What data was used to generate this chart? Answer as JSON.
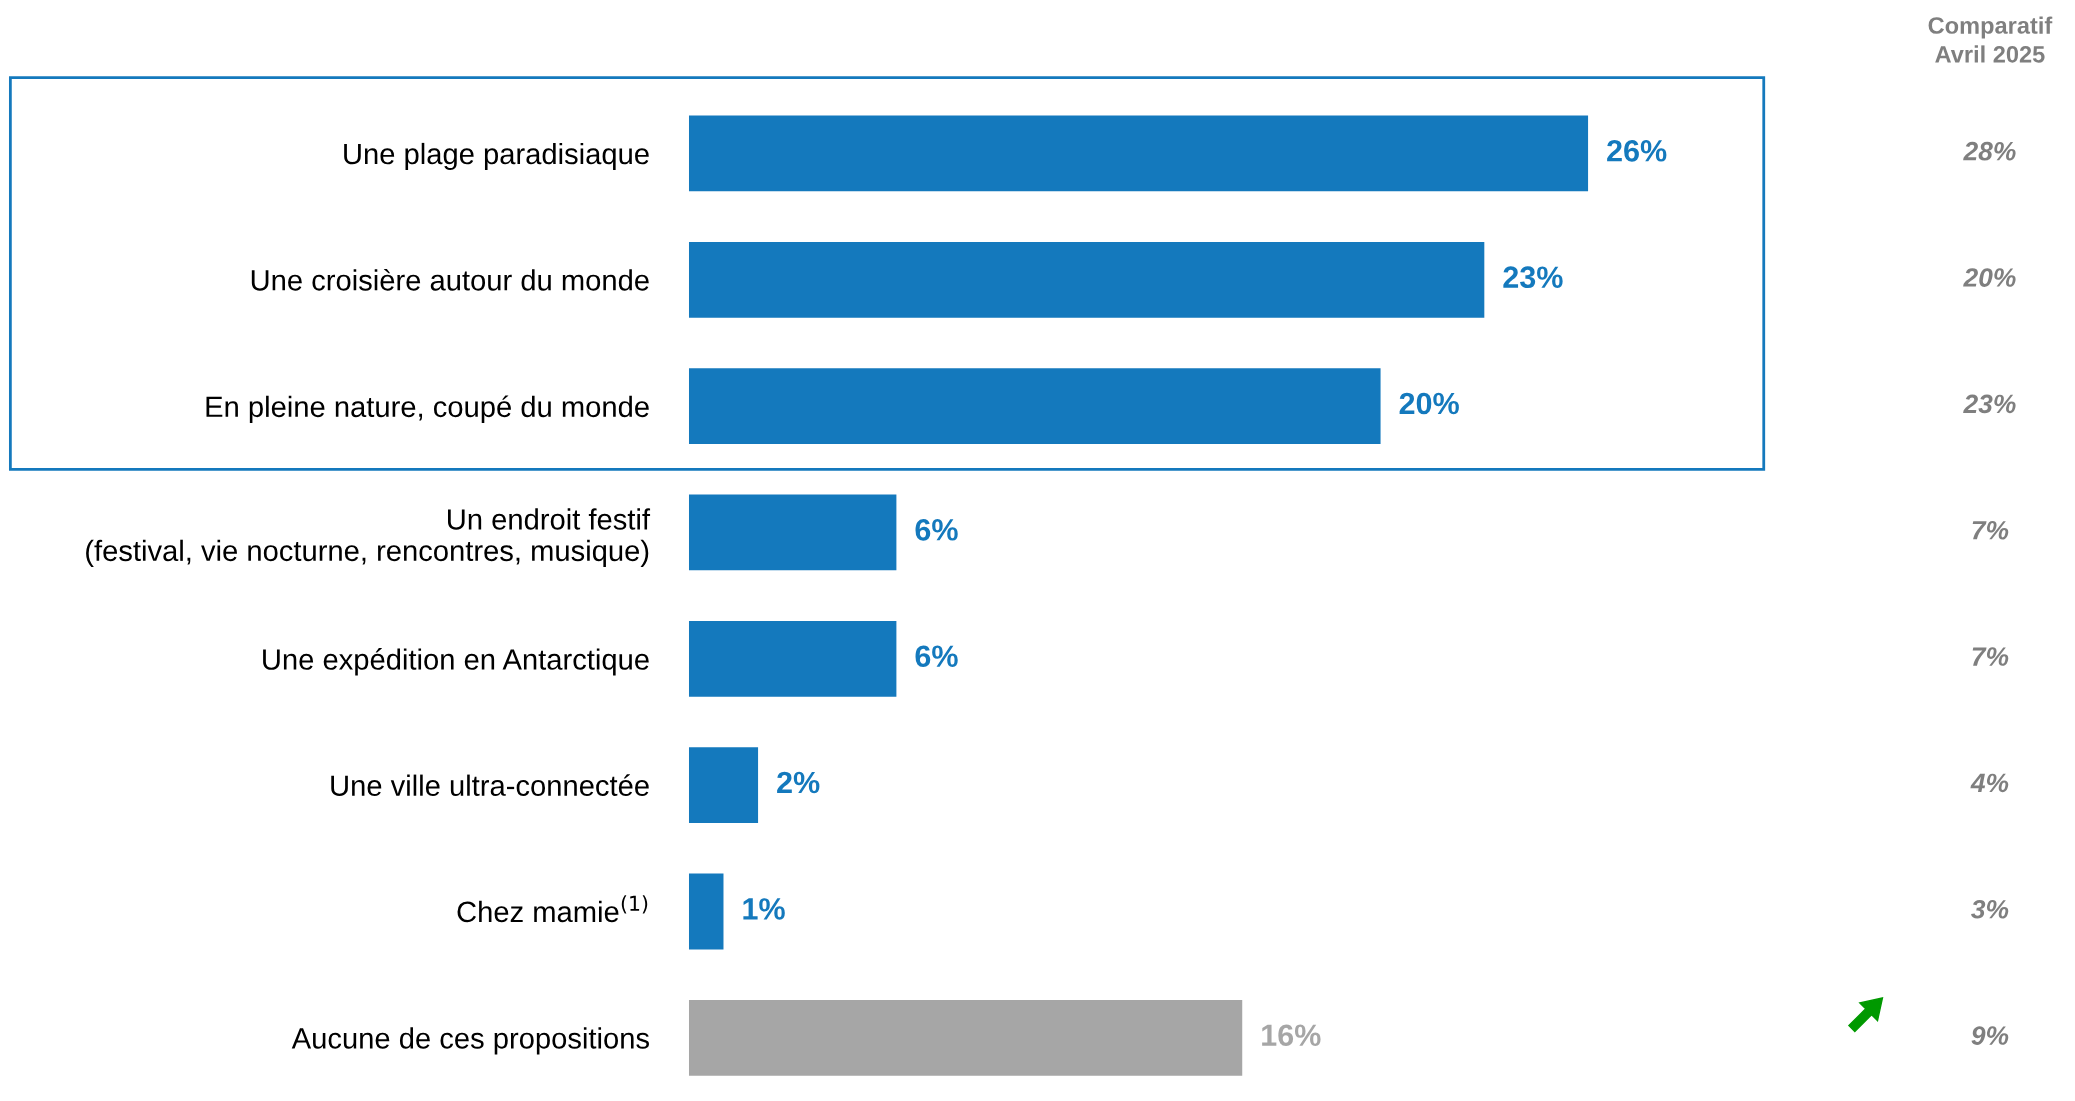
{
  "chart_data": {
    "type": "bar",
    "orientation": "horizontal",
    "categories": [
      "Une plage paradisiaque",
      "Une croisière autour du monde",
      "En pleine nature, coupé du monde",
      "Un endroit festif\n(festival, vie nocturne, rencontres, musique)",
      "Une expédition en Antarctique",
      "Une ville ultra-connectée",
      "Chez mamie$^{(1)}$",
      "Aucune de ces propositions"
    ],
    "values": [
      26,
      23,
      20,
      6,
      6,
      2,
      1,
      16
    ],
    "value_labels": [
      "26%",
      "23%",
      "20%",
      "6%",
      "6%",
      "2%",
      "1%",
      "16%"
    ],
    "colors": [
      "#1479bd",
      "#1479bd",
      "#1479bd",
      "#1479bd",
      "#1479bd",
      "#1479bd",
      "#1479bd",
      "#a6a6a6"
    ],
    "annotations": [
      "Comparatif\nAvril 2025",
      "28%",
      "20%",
      "23%",
      "7%",
      "7%",
      "4%",
      "3%",
      "9%"
    ],
    "tick_labels": "y",
    "grid": false,
    "legend": false
  }
}
